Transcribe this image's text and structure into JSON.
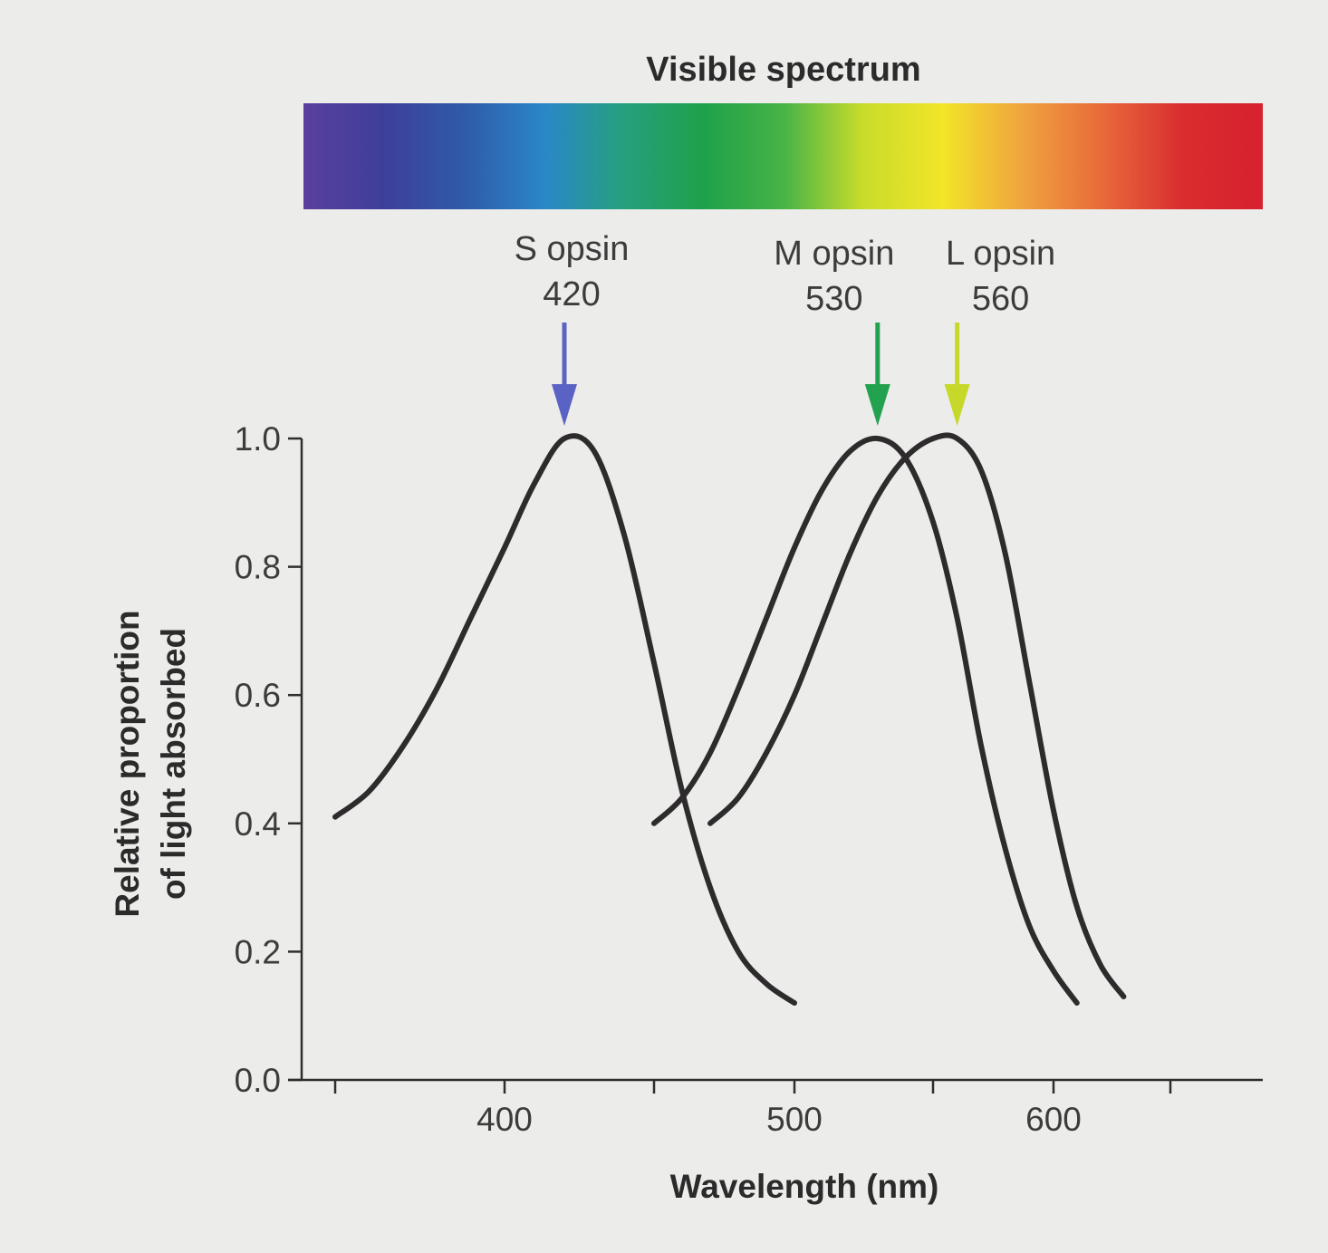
{
  "chart_data": {
    "type": "line",
    "spectrum_title": "Visible spectrum",
    "spectrum_colors": [
      "#5a3f9e",
      "#3e3f9a",
      "#2f5aa8",
      "#2a86c9",
      "#25a07e",
      "#1ea14a",
      "#47b347",
      "#c9dc2a",
      "#f2e528",
      "#f0a33f",
      "#e8693a",
      "#d92d2f",
      "#d8202e"
    ],
    "xlabel": "Wavelength (nm)",
    "ylabel_lines": [
      "Relative proportion",
      "of light absorbed"
    ],
    "xlim": [
      350,
      665
    ],
    "ylim": [
      0,
      1.0
    ],
    "x_tick_labels": [
      {
        "value": 400,
        "text": "400"
      },
      {
        "value": 500,
        "text": "500"
      },
      {
        "value": 600,
        "text": "600"
      }
    ],
    "x_minor_ticks": [
      350,
      450,
      550,
      650
    ],
    "y_ticks": [
      {
        "value": 0.0,
        "text": "0.0"
      },
      {
        "value": 0.2,
        "text": "0.2"
      },
      {
        "value": 0.4,
        "text": "0.4"
      },
      {
        "value": 0.6,
        "text": "0.6"
      },
      {
        "value": 0.8,
        "text": "0.8"
      },
      {
        "value": 1.0,
        "text": "1.0"
      }
    ],
    "grid": false,
    "series": [
      {
        "name": "S opsin",
        "peak_text": "420",
        "peak": 420,
        "arrow_color": "#5a63c4",
        "points": [
          [
            350,
            0.41
          ],
          [
            360,
            0.45
          ],
          [
            370,
            0.52
          ],
          [
            380,
            0.61
          ],
          [
            390,
            0.72
          ],
          [
            400,
            0.83
          ],
          [
            410,
            0.93
          ],
          [
            420,
            1.0
          ],
          [
            430,
            0.98
          ],
          [
            440,
            0.85
          ],
          [
            450,
            0.65
          ],
          [
            460,
            0.45
          ],
          [
            470,
            0.3
          ],
          [
            480,
            0.2
          ],
          [
            490,
            0.15
          ],
          [
            500,
            0.12
          ]
        ]
      },
      {
        "name": "M opsin",
        "peak_text": "530",
        "peak": 530,
        "arrow_color": "#22a24e",
        "points": [
          [
            450,
            0.4
          ],
          [
            460,
            0.44
          ],
          [
            470,
            0.51
          ],
          [
            480,
            0.61
          ],
          [
            490,
            0.72
          ],
          [
            500,
            0.83
          ],
          [
            510,
            0.92
          ],
          [
            520,
            0.98
          ],
          [
            530,
            1.0
          ],
          [
            540,
            0.97
          ],
          [
            550,
            0.87
          ],
          [
            560,
            0.72
          ],
          [
            570,
            0.52
          ],
          [
            580,
            0.36
          ],
          [
            590,
            0.24
          ],
          [
            600,
            0.17
          ],
          [
            610,
            0.12
          ]
        ]
      },
      {
        "name": "L opsin",
        "peak_text": "560",
        "peak": 560,
        "arrow_color": "#c6d82a",
        "points": [
          [
            470,
            0.4
          ],
          [
            480,
            0.44
          ],
          [
            490,
            0.51
          ],
          [
            500,
            0.6
          ],
          [
            510,
            0.71
          ],
          [
            520,
            0.82
          ],
          [
            530,
            0.91
          ],
          [
            540,
            0.97
          ],
          [
            550,
            1.0
          ],
          [
            560,
            1.0
          ],
          [
            570,
            0.95
          ],
          [
            580,
            0.82
          ],
          [
            590,
            0.62
          ],
          [
            600,
            0.42
          ],
          [
            610,
            0.27
          ],
          [
            620,
            0.18
          ],
          [
            630,
            0.13
          ]
        ]
      }
    ]
  }
}
